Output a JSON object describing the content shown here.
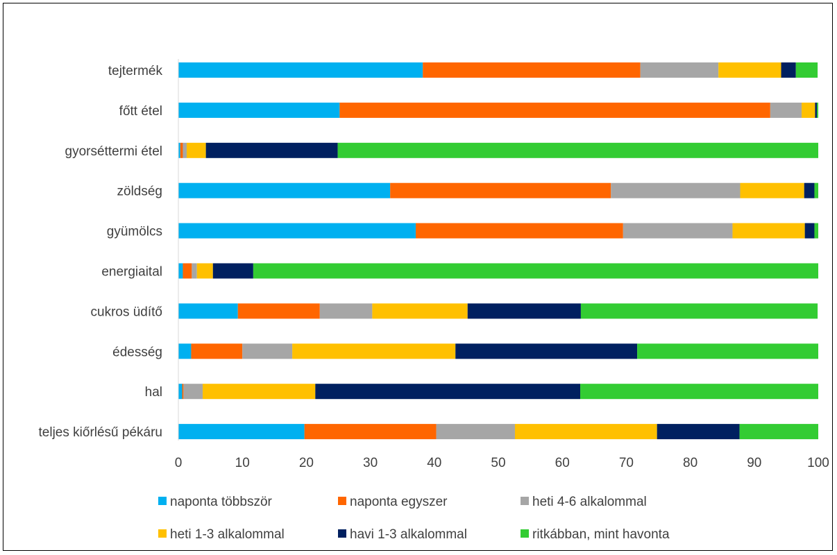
{
  "chart_data": {
    "type": "bar",
    "orientation": "horizontal",
    "stacked": true,
    "categories": [
      "tejtermék",
      "főtt étel",
      "gyorséttermi étel",
      "zöldség",
      "gyümölcs",
      "energiaital",
      "cukros üdítő",
      "édesség",
      "hal",
      "teljes kiőrlésű pékáru"
    ],
    "series": [
      {
        "name": "naponta többször",
        "color": "#00B0F0",
        "values": [
          38.2,
          25.2,
          0.3,
          33.1,
          37.1,
          0.7,
          9.3,
          2.0,
          0.6,
          19.7
        ]
      },
      {
        "name": "naponta egyszer",
        "color": "#FF6600",
        "values": [
          34.0,
          67.3,
          0.4,
          34.5,
          32.4,
          1.4,
          12.8,
          8.0,
          0.2,
          20.6
        ]
      },
      {
        "name": "heti 4-6 alkalommal",
        "color": "#A6A6A6",
        "values": [
          12.2,
          4.9,
          0.6,
          20.2,
          17.1,
          0.8,
          8.2,
          7.8,
          3.0,
          12.3
        ]
      },
      {
        "name": "heti 1-3 alkalommal",
        "color": "#FFC000",
        "values": [
          9.8,
          2.1,
          3.0,
          10.0,
          11.3,
          2.5,
          14.9,
          25.5,
          17.6,
          22.2
        ]
      },
      {
        "name": "havi 1-3 alkalommal",
        "color": "#002060",
        "values": [
          2.3,
          0.3,
          20.6,
          1.6,
          1.5,
          6.3,
          17.7,
          28.4,
          41.4,
          12.9
        ]
      },
      {
        "name": "ritkábban, mint havonta",
        "color": "#33CC33",
        "values": [
          3.4,
          0.2,
          75.1,
          0.6,
          0.6,
          88.3,
          37.0,
          28.3,
          37.2,
          12.3
        ]
      }
    ],
    "xlim": [
      0,
      100
    ],
    "xticks": [
      "0",
      "10",
      "20",
      "30",
      "40",
      "50",
      "60",
      "70",
      "80",
      "90",
      "100"
    ],
    "grid": false,
    "legend_position": "bottom"
  }
}
